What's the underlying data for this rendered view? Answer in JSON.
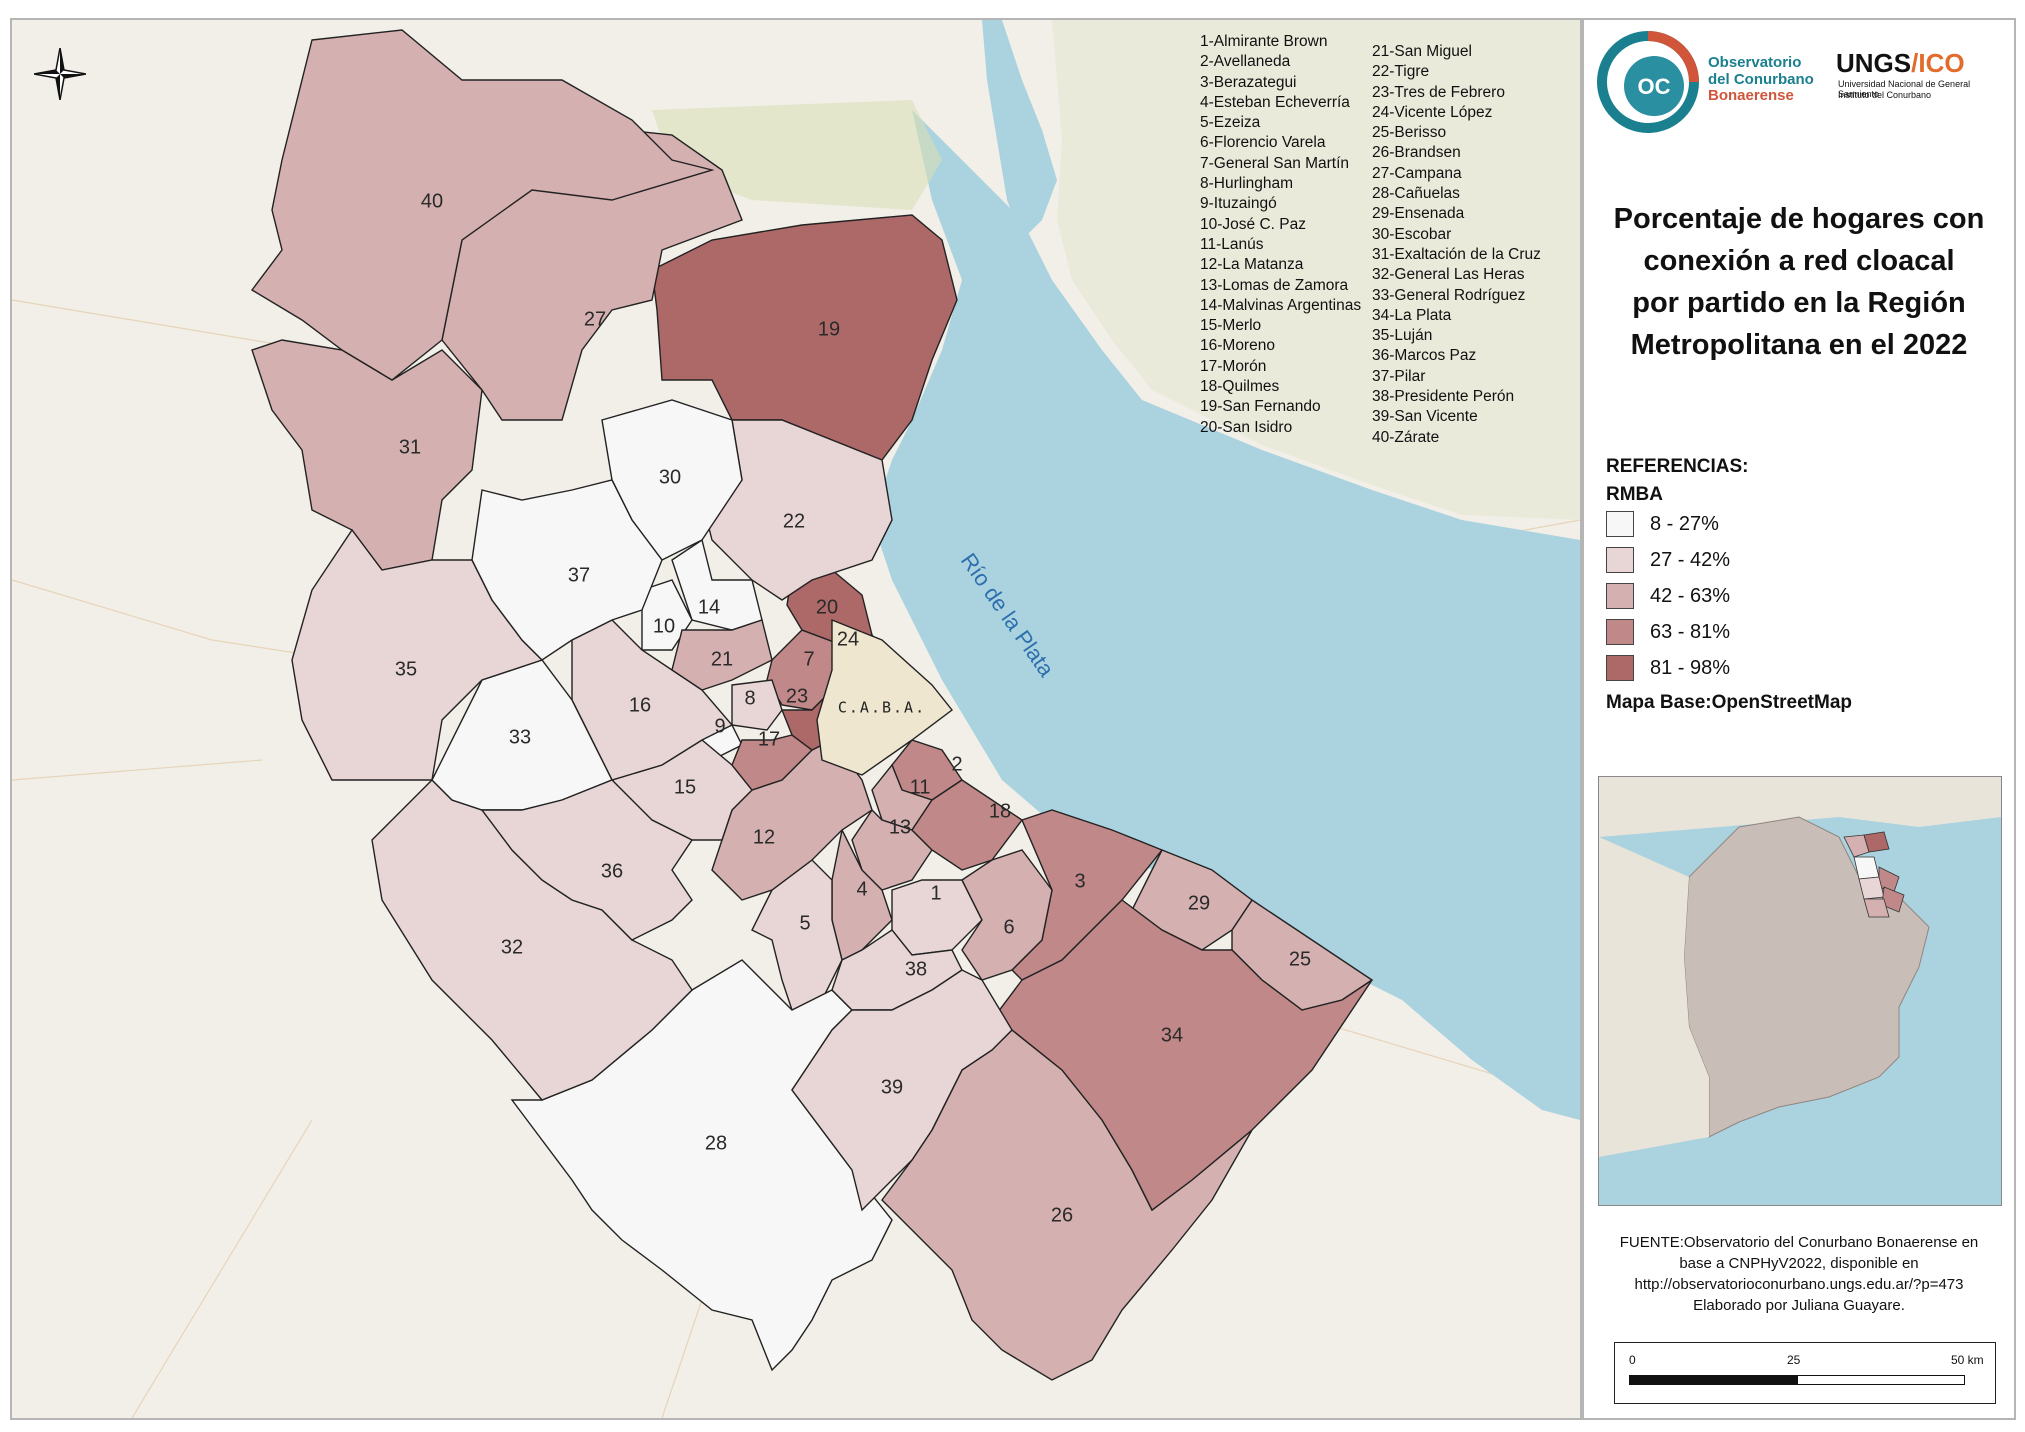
{
  "title": "Porcentaje de hogares con conexión a red cloacal por partido en la Región Metropolitana en el 2022",
  "title_lines": [
    "Porcentaje de hogares con",
    "conexión a red cloacal",
    "por partido en la Región",
    "Metropolitana en el 2022"
  ],
  "logo": {
    "coc_letters": "OC",
    "coc_line1": "Observatorio",
    "coc_line2": "del Conurbano",
    "coc_line3": "Bonaerense",
    "ungs_name": "UNGS",
    "ungs_sep": "/",
    "ungs_ico": "ICO",
    "ungs_sub1": "Universidad Nacional de General Sarmiento",
    "ungs_sub2": "Instituto del Conurbano"
  },
  "legend": {
    "heading": "REFERENCIAS:",
    "subheading": "RMBA",
    "classes": [
      {
        "label": "8 - 27%",
        "color": "#f7f7f7"
      },
      {
        "label": "27 - 42%",
        "color": "#e8d6d6"
      },
      {
        "label": "42 - 63%",
        "color": "#d4b0b0"
      },
      {
        "label": "63 - 81%",
        "color": "#c08888"
      },
      {
        "label": "81 - 98%",
        "color": "#ad6868"
      }
    ],
    "basemap": "Mapa Base:OpenStreetMap"
  },
  "source": {
    "line1": "FUENTE:Observatorio  del Conurbano Bonaerense en",
    "line2": "base a CNPHyV2022,  disponible  en",
    "line3": "http://observatorioconurbano.ungs.edu.ar/?p=473",
    "line4": "Elaborado por  Juliana Guayare."
  },
  "scale": {
    "labels": [
      "0",
      "25",
      "50 km"
    ]
  },
  "river_label": "Río de la Plata",
  "caba_label": "C.A.B.A.",
  "districts": [
    {
      "num": "1",
      "name": "1-Almirante Brown",
      "class": 1
    },
    {
      "num": "2",
      "name": "2-Avellaneda",
      "class": 3
    },
    {
      "num": "3",
      "name": "3-Berazategui",
      "class": 3
    },
    {
      "num": "4",
      "name": "4-Esteban Echeverría",
      "class": 2
    },
    {
      "num": "5",
      "name": "5-Ezeiza",
      "class": 1
    },
    {
      "num": "6",
      "name": "6-Florencio Varela",
      "class": 2
    },
    {
      "num": "7",
      "name": "7-General San Martín",
      "class": 3
    },
    {
      "num": "8",
      "name": "8-Hurlingham",
      "class": 1
    },
    {
      "num": "9",
      "name": "9-Ituzaingó",
      "class": 0
    },
    {
      "num": "10",
      "name": "10-José C. Paz",
      "class": 0
    },
    {
      "num": "11",
      "name": "11-Lanús",
      "class": 2
    },
    {
      "num": "12",
      "name": "12-La Matanza",
      "class": 2
    },
    {
      "num": "13",
      "name": "13-Lomas de Zamora",
      "class": 2
    },
    {
      "num": "14",
      "name": "14-Malvinas Argentinas",
      "class": 0
    },
    {
      "num": "15",
      "name": "15-Merlo",
      "class": 1
    },
    {
      "num": "16",
      "name": "16-Moreno",
      "class": 1
    },
    {
      "num": "17",
      "name": "17-Morón",
      "class": 3
    },
    {
      "num": "18",
      "name": "18-Quilmes",
      "class": 3
    },
    {
      "num": "19",
      "name": "19-San Fernando",
      "class": 4
    },
    {
      "num": "20",
      "name": "20-San Isidro",
      "class": 4
    },
    {
      "num": "21",
      "name": "21-San Miguel",
      "class": 2
    },
    {
      "num": "22",
      "name": "22-Tigre",
      "class": 1
    },
    {
      "num": "23",
      "name": "23-Tres de Febrero",
      "class": 4
    },
    {
      "num": "24",
      "name": "24-Vicente López",
      "class": 4
    },
    {
      "num": "25",
      "name": "25-Berisso",
      "class": 2
    },
    {
      "num": "26",
      "name": "26-Brandsen",
      "class": 2
    },
    {
      "num": "27",
      "name": "27-Campana",
      "class": 2
    },
    {
      "num": "28",
      "name": "28-Cañuelas",
      "class": 0
    },
    {
      "num": "29",
      "name": "29-Ensenada",
      "class": 2
    },
    {
      "num": "30",
      "name": "30-Escobar",
      "class": 0
    },
    {
      "num": "31",
      "name": "31-Exaltación de la Cruz",
      "class": 2
    },
    {
      "num": "32",
      "name": "32-General Las Heras",
      "class": 1
    },
    {
      "num": "33",
      "name": "33-General Rodríguez",
      "class": 0
    },
    {
      "num": "34",
      "name": "34-La Plata",
      "class": 3
    },
    {
      "num": "35",
      "name": "35-Luján",
      "class": 1
    },
    {
      "num": "36",
      "name": "36-Marcos Paz",
      "class": 1
    },
    {
      "num": "37",
      "name": "37-Pilar",
      "class": 0
    },
    {
      "num": "38",
      "name": "38-Presidente Perón",
      "class": 1
    },
    {
      "num": "39",
      "name": "39-San Vicente",
      "class": 1
    },
    {
      "num": "40",
      "name": "40-Zárate",
      "class": 2
    }
  ],
  "colors": {
    "water": "#aad3df",
    "land": "#f2efe9",
    "caba": "#efe6cf",
    "border": "#222222",
    "accent_teal": "#1a7f8f",
    "accent_orange": "#e36b2c"
  }
}
